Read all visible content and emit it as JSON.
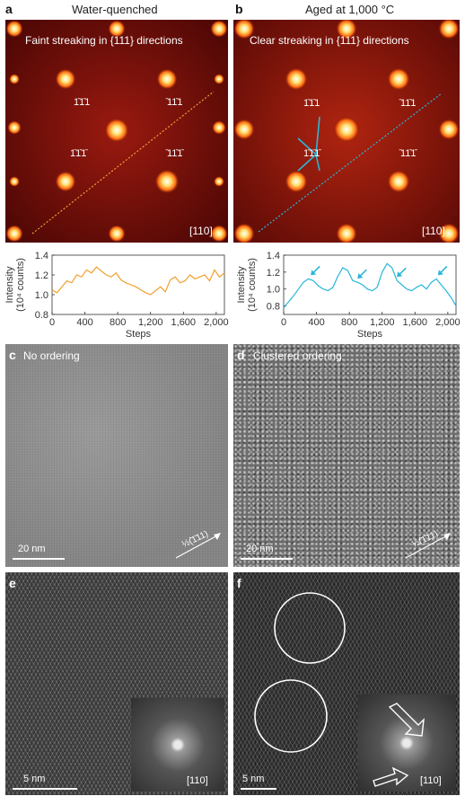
{
  "panels": {
    "a": {
      "letter": "a",
      "title": "Water-quenched",
      "caption": "Faint streaking in {111} directions",
      "zone": "[110]",
      "spots": [
        "11̄1",
        "̄11̄1 ",
        "11̄1̄",
        "̄11̄1̄"
      ]
    },
    "b": {
      "letter": "b",
      "title": "Aged at 1,000 °C",
      "caption": "Clear streaking in {111} directions",
      "zone": "[110]"
    },
    "c": {
      "letter": "c",
      "caption": "No ordering",
      "scale": "20 nm",
      "direction": "½(̄1̄11)"
    },
    "d": {
      "letter": "d",
      "caption": "Clustered ordering",
      "scale": "20 nm",
      "direction": "½(̄1̄11)"
    },
    "e": {
      "letter": "e",
      "scale": "5 nm",
      "zone": "[110]"
    },
    "f": {
      "letter": "f",
      "scale": "5 nm",
      "zone": "[110]"
    }
  },
  "spot_labels": {
    "l1": "1̄1̄1",
    "l2": "̄11̄1",
    "l3": "1̄1̄1̄",
    "l4": "̄11̄1̄",
    "top_left": "11̄1",
    "top_right": "̄111",
    "bot_left": "11̄1̄",
    "bot_right": "̄11̄1̄"
  },
  "chart_data": [
    {
      "type": "line",
      "ylabel": "Intensity\n(10⁴ counts)",
      "xlabel": "Steps",
      "xlim": [
        0,
        2100
      ],
      "ylim": [
        0.8,
        1.4
      ],
      "xticks": [
        "0",
        "400",
        "800",
        "1,200",
        "1,600",
        "2,000"
      ],
      "yticks": [
        "0.8",
        "1.0",
        "1.2",
        "1.4"
      ],
      "color": "#f0a030",
      "x": [
        0,
        60,
        120,
        180,
        240,
        300,
        360,
        420,
        480,
        540,
        600,
        660,
        720,
        780,
        840,
        900,
        960,
        1020,
        1080,
        1140,
        1200,
        1260,
        1320,
        1380,
        1440,
        1500,
        1560,
        1620,
        1680,
        1740,
        1800,
        1860,
        1920,
        1980,
        2040,
        2100
      ],
      "y": [
        1.05,
        1.02,
        1.08,
        1.14,
        1.12,
        1.2,
        1.18,
        1.25,
        1.22,
        1.28,
        1.24,
        1.2,
        1.18,
        1.22,
        1.15,
        1.12,
        1.1,
        1.08,
        1.05,
        1.02,
        1.0,
        1.04,
        1.08,
        1.03,
        1.15,
        1.18,
        1.12,
        1.14,
        1.2,
        1.16,
        1.18,
        1.2,
        1.14,
        1.25,
        1.18,
        1.22
      ]
    },
    {
      "type": "line",
      "ylabel": "Intensity\n(10⁴ counts)",
      "xlabel": "Steps",
      "xlim": [
        0,
        2100
      ],
      "ylim": [
        0.7,
        1.4
      ],
      "xticks": [
        "0",
        "400",
        "800",
        "1,200",
        "1,600",
        "2,000"
      ],
      "yticks": [
        "0.8",
        "1.0",
        "1.2",
        "1.4"
      ],
      "color": "#29b6d8",
      "x": [
        0,
        60,
        120,
        180,
        240,
        300,
        360,
        420,
        480,
        540,
        600,
        660,
        720,
        780,
        840,
        900,
        960,
        1020,
        1080,
        1140,
        1200,
        1260,
        1320,
        1380,
        1440,
        1500,
        1560,
        1620,
        1680,
        1740,
        1800,
        1860,
        1920,
        1980,
        2040,
        2100
      ],
      "y": [
        0.78,
        0.85,
        0.92,
        1.0,
        1.08,
        1.12,
        1.1,
        1.04,
        1.0,
        0.98,
        1.02,
        1.15,
        1.25,
        1.22,
        1.1,
        1.08,
        1.05,
        1.0,
        0.98,
        1.02,
        1.2,
        1.3,
        1.25,
        1.1,
        1.05,
        1.0,
        0.98,
        1.02,
        1.05,
        1.0,
        1.08,
        1.12,
        1.05,
        0.98,
        0.9,
        0.8
      ],
      "arrows_x": [
        330,
        900,
        1380,
        1880
      ]
    }
  ]
}
